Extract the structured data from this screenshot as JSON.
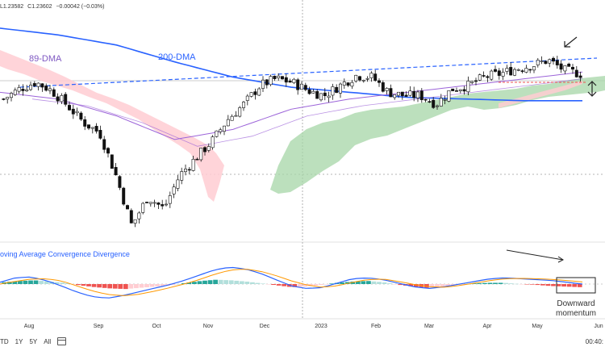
{
  "header": {
    "low": "L1.23582",
    "close": "C1.23602",
    "change": "−0.00042 (−0.03%)"
  },
  "footer": {
    "timeframes": [
      "TD",
      "1Y",
      "5Y",
      "All"
    ],
    "time": "00:40:"
  },
  "colors": {
    "up": "#26a69a",
    "down": "#ef5350",
    "dma200": "#2962ff",
    "dma89": "#9c64d9",
    "macd": "#2962ff",
    "signal": "#ff9800",
    "cloud_bull": "#a5d6a7",
    "cloud_bear": "#ffcdd2",
    "trend": "#2962ff"
  },
  "chart_data": [
    {
      "type": "candlestick",
      "title": "",
      "x_ticks": [
        "Aug",
        "Sep",
        "Oct",
        "Nov",
        "Dec",
        "2023",
        "Feb",
        "Mar",
        "Apr",
        "May",
        "Jun"
      ],
      "series_labels": {
        "dma89": "89-DMA",
        "dma200": "200-DMA"
      },
      "close_path": [
        {
          "x": "Jul",
          "y": 0.4
        },
        {
          "x": "Jul",
          "y": 0.46
        },
        {
          "x": "Aug",
          "y": 0.5
        },
        {
          "x": "Aug",
          "y": 0.45
        },
        {
          "x": "Aug",
          "y": 0.36
        },
        {
          "x": "Sep",
          "y": 0.26
        },
        {
          "x": "Sep",
          "y": 0.2
        },
        {
          "x": "Sep",
          "y": -0.05
        },
        {
          "x": "Oct",
          "y": -0.35
        },
        {
          "x": "Oct",
          "y": -0.18
        },
        {
          "x": "Oct",
          "y": -0.25
        },
        {
          "x": "Oct",
          "y": -0.05
        },
        {
          "x": "Nov",
          "y": 0.05
        },
        {
          "x": "Nov",
          "y": 0.15
        },
        {
          "x": "Nov",
          "y": 0.28
        },
        {
          "x": "Nov",
          "y": 0.37
        },
        {
          "x": "Dec",
          "y": 0.48
        },
        {
          "x": "Dec",
          "y": 0.52
        },
        {
          "x": "Dec",
          "y": 0.5
        },
        {
          "x": "2023",
          "y": 0.45
        },
        {
          "x": "2023",
          "y": 0.42
        },
        {
          "x": "2023",
          "y": 0.48
        },
        {
          "x": "Feb",
          "y": 0.54
        },
        {
          "x": "Feb",
          "y": 0.53
        },
        {
          "x": "Feb",
          "y": 0.44
        },
        {
          "x": "Feb",
          "y": 0.42
        },
        {
          "x": "Mar",
          "y": 0.42
        },
        {
          "x": "Mar",
          "y": 0.37
        },
        {
          "x": "Mar",
          "y": 0.46
        },
        {
          "x": "Apr",
          "y": 0.48
        },
        {
          "x": "Apr",
          "y": 0.53
        },
        {
          "x": "Apr",
          "y": 0.55
        },
        {
          "x": "May",
          "y": 0.58
        },
        {
          "x": "May",
          "y": 0.6
        },
        {
          "x": "May",
          "y": 0.63
        },
        {
          "x": "May",
          "y": 0.57
        },
        {
          "x": "Jun",
          "y": 0.55
        }
      ],
      "dma200_path": [
        0.82,
        0.78,
        0.72,
        0.62,
        0.53,
        0.47,
        0.44,
        0.41,
        0.4,
        0.39,
        0.39
      ],
      "dma89_path": [
        0.44,
        0.4,
        0.3,
        0.16,
        0.22,
        0.34,
        0.4,
        0.44,
        0.48,
        0.52,
        0.56
      ],
      "annotations": [
        "89-DMA",
        "200-DMA"
      ]
    },
    {
      "type": "bar",
      "title": "oving Average Convergence Divergence",
      "annotation": [
        "Downward",
        "momentum"
      ],
      "histogram": [
        0.15,
        0.25,
        0.3,
        0.2,
        0.1,
        -0.1,
        -0.25,
        -0.35,
        -0.4,
        -0.3,
        -0.2,
        -0.1,
        0.1,
        0.25,
        0.35,
        0.3,
        0.2,
        0.05,
        -0.1,
        -0.25,
        -0.2,
        -0.05,
        0.1,
        0.2,
        0.25,
        0.15,
        -0.05,
        -0.2,
        -0.3,
        -0.2,
        -0.05,
        0.05,
        0.1,
        0.1,
        0.0,
        -0.05,
        -0.15,
        -0.2,
        -0.25
      ],
      "macd": [
        0.1,
        0.35,
        0.4,
        0.2,
        -0.1,
        -0.45,
        -0.7,
        -0.8,
        -0.65,
        -0.45,
        -0.25,
        -0.05,
        0.2,
        0.5,
        0.8,
        0.95,
        0.85,
        0.6,
        0.25,
        -0.1,
        -0.25,
        -0.2,
        0.05,
        0.3,
        0.35,
        0.25,
        0.05,
        -0.15,
        -0.25,
        -0.15,
        0.0,
        0.15,
        0.3,
        0.35,
        0.3,
        0.25,
        0.2,
        0.1,
        0.0
      ],
      "signal": [
        0.0,
        0.15,
        0.28,
        0.3,
        0.18,
        -0.1,
        -0.38,
        -0.58,
        -0.66,
        -0.58,
        -0.42,
        -0.22,
        0.0,
        0.25,
        0.55,
        0.78,
        0.85,
        0.72,
        0.48,
        0.18,
        -0.05,
        -0.18,
        -0.1,
        0.1,
        0.25,
        0.28,
        0.15,
        -0.02,
        -0.15,
        -0.18,
        -0.08,
        0.06,
        0.2,
        0.3,
        0.32,
        0.3,
        0.26,
        0.2,
        0.12
      ]
    }
  ]
}
